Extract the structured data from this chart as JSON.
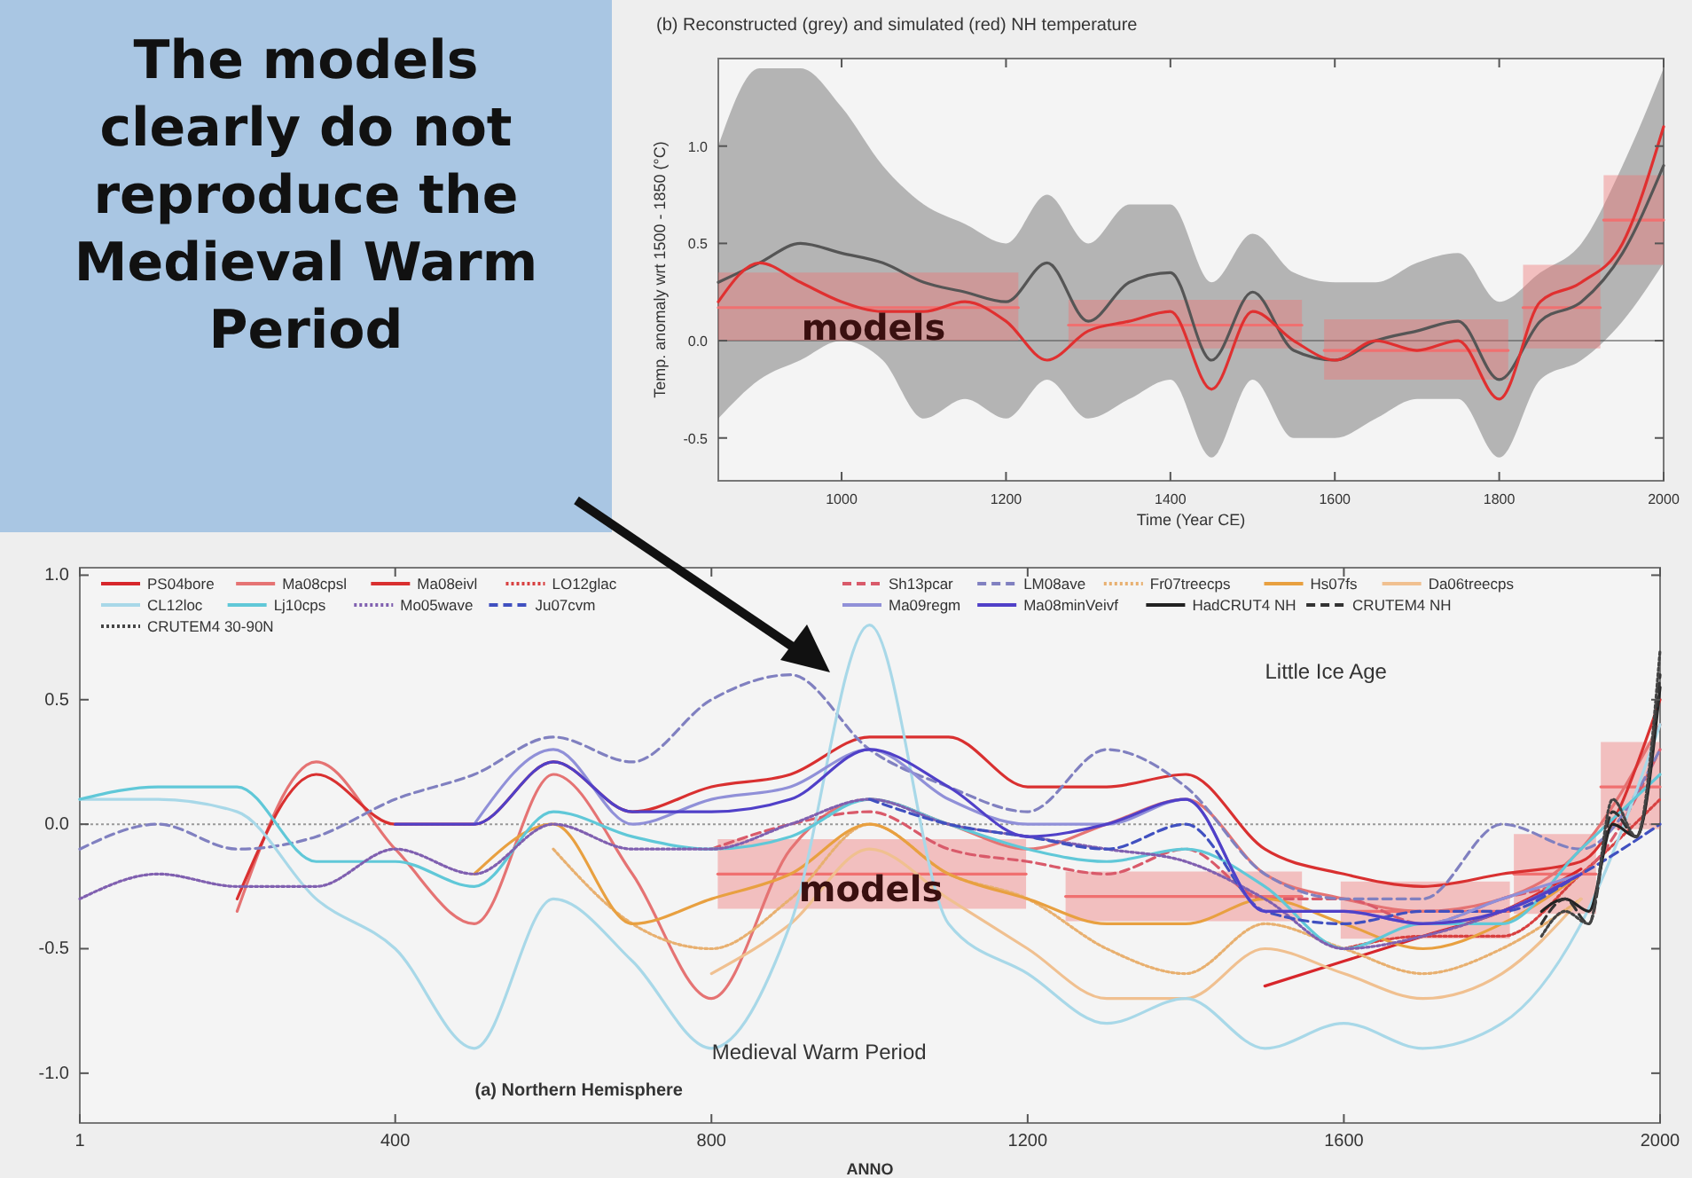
{
  "chart_data": [
    {
      "type": "other",
      "title": "The models clearly do not reproduce the Medieval Warm Period"
    },
    {
      "type": "line",
      "title": "(b) Reconstructed (grey) and simulated (red) NH temperature",
      "xlabel": "Time (Year CE)",
      "ylabel": "Temp. anomaly wrt 1500 - 1850 (°C)",
      "xlim": [
        850,
        2000
      ],
      "ylim": [
        -0.72,
        1.45
      ],
      "xticks": [
        1000,
        1200,
        1400,
        1600,
        1800,
        2000
      ],
      "yticks": [
        {
          "value": -0.5,
          "label": "-0.5"
        },
        {
          "value": 0,
          "label": "0.0"
        },
        {
          "value": 0.5,
          "label": "0.5"
        },
        {
          "value": 1,
          "label": "1.0"
        }
      ],
      "x": [
        850,
        900,
        950,
        1000,
        1050,
        1100,
        1150,
        1200,
        1250,
        1300,
        1350,
        1400,
        1450,
        1500,
        1550,
        1600,
        1650,
        1700,
        1750,
        1800,
        1850,
        1900,
        1950,
        2000
      ],
      "ref_lines": [
        {
          "axis": "y",
          "value": 0,
          "color": "#999999",
          "line_style": "solid"
        }
      ],
      "series": [
        {
          "color": "#555555",
          "values": [
            0.3,
            0.4,
            0.5,
            0.45,
            0.4,
            0.3,
            0.25,
            0.2,
            0.4,
            0.1,
            0.3,
            0.35,
            -0.1,
            0.25,
            -0.05,
            -0.1,
            0.0,
            0.05,
            0.1,
            -0.2,
            0.1,
            0.2,
            0.45,
            0.9
          ],
          "lower": [
            -0.4,
            -0.2,
            -0.1,
            0.0,
            -0.1,
            -0.4,
            -0.3,
            -0.4,
            -0.2,
            -0.4,
            -0.3,
            -0.2,
            -0.6,
            -0.2,
            -0.5,
            -0.5,
            -0.4,
            -0.3,
            -0.3,
            -0.6,
            -0.2,
            -0.1,
            0.1,
            0.4
          ],
          "upper": [
            1.0,
            1.4,
            1.4,
            1.2,
            0.9,
            0.7,
            0.6,
            0.5,
            0.75,
            0.5,
            0.7,
            0.7,
            0.3,
            0.55,
            0.35,
            0.3,
            0.3,
            0.4,
            0.45,
            0.2,
            0.35,
            0.5,
            0.9,
            1.4
          ]
        },
        {
          "color": "#e03030",
          "values": [
            0.2,
            0.4,
            0.3,
            0.2,
            0.15,
            0.15,
            0.2,
            0.1,
            -0.1,
            0.05,
            0.1,
            0.15,
            -0.25,
            0.15,
            0.0,
            -0.1,
            0.0,
            -0.05,
            0.0,
            -0.3,
            0.2,
            0.3,
            0.5,
            1.1
          ]
        },
        {
          "color": "#f07070",
          "x": [
            850,
            1215
          ],
          "values": [
            0.17,
            0.17
          ],
          "lower": [
            0,
            0
          ],
          "upper": [
            0.35,
            0.35
          ]
        },
        {
          "color": "#f07070",
          "x": [
            1276,
            1560
          ],
          "values": [
            0.08,
            0.08
          ],
          "lower": [
            -0.04,
            -0.04
          ],
          "upper": [
            0.21,
            0.21
          ]
        },
        {
          "color": "#f07070",
          "x": [
            1587,
            1811
          ],
          "values": [
            -0.05,
            -0.05
          ],
          "lower": [
            -0.2,
            -0.2
          ],
          "upper": [
            0.11,
            0.11
          ]
        },
        {
          "color": "#f07070",
          "x": [
            1829,
            1923
          ],
          "values": [
            0.17,
            0.17
          ],
          "lower": [
            -0.04,
            -0.04
          ],
          "upper": [
            0.39,
            0.39
          ]
        },
        {
          "color": "#f07070",
          "x": [
            1927,
            2000
          ],
          "values": [
            0.62,
            0.62
          ],
          "lower": [
            0.39,
            0.39
          ],
          "upper": [
            0.85,
            0.85
          ]
        }
      ],
      "annotations": [
        "models"
      ]
    },
    {
      "type": "line",
      "xlabel": "ANNO",
      "xlim": [
        1,
        2000
      ],
      "ylim": [
        -1.2,
        1.03
      ],
      "xticks": [
        1,
        400,
        800,
        1200,
        1600,
        2000
      ],
      "yticks": [
        {
          "value": -1,
          "label": "-1.0"
        },
        {
          "value": -0.5,
          "label": "-0.5"
        },
        {
          "value": 0,
          "label": "0.0"
        },
        {
          "value": 0.5,
          "label": "0.5"
        },
        {
          "value": 1,
          "label": "1.0"
        }
      ],
      "x": [
        1,
        100,
        200,
        300,
        400,
        500,
        600,
        700,
        800,
        900,
        1000,
        1100,
        1200,
        1300,
        1400,
        1500,
        1600,
        1700,
        1800,
        1900,
        2000
      ],
      "legend": "top",
      "ref_lines": [
        {
          "axis": "y",
          "value": 0,
          "color": "#999999",
          "line_style": "dotted"
        }
      ],
      "series": [
        {
          "name": "PS04bore",
          "color": "#d7262b",
          "x": [
            1500,
            1600,
            1700,
            1800,
            1900
          ],
          "values": [
            -0.65,
            -0.55,
            -0.45,
            -0.35,
            -0.18
          ]
        },
        {
          "name": "Ma08cpsl",
          "color": "#e57373",
          "values": [
            null,
            null,
            -0.35,
            0.25,
            -0.1,
            -0.4,
            0.2,
            -0.2,
            -0.7,
            -0.1,
            0.1,
            0.0,
            -0.1,
            0.0,
            0.1,
            -0.2,
            -0.3,
            -0.35,
            -0.3,
            -0.1,
            0.4
          ]
        },
        {
          "name": "Ma08eivl",
          "color": "#d93030",
          "values": [
            null,
            null,
            -0.3,
            0.2,
            0.0,
            0.0,
            0.25,
            0.05,
            0.15,
            0.2,
            0.35,
            0.35,
            0.15,
            0.15,
            0.2,
            -0.1,
            -0.2,
            -0.25,
            -0.2,
            -0.15,
            0.5
          ]
        },
        {
          "name": "LO12glac",
          "color": "#d84040",
          "line_style": "dotted",
          "x": [
            1600,
            1700,
            1800,
            1900,
            2000
          ],
          "values": [
            -0.5,
            -0.45,
            -0.45,
            -0.2,
            0.1
          ]
        },
        {
          "name": "Sh13pcar",
          "color": "#d95a6a",
          "line_style": "dashed",
          "values": [
            null,
            null,
            null,
            null,
            null,
            null,
            null,
            null,
            -0.1,
            0.0,
            0.05,
            -0.1,
            -0.15,
            -0.2,
            -0.1,
            -0.3,
            -0.3,
            -0.4,
            -0.3,
            -0.2,
            0.3
          ]
        },
        {
          "name": "LM08ave",
          "color": "#8080c0",
          "line_style": "dashed",
          "values": [
            -0.1,
            0.0,
            -0.1,
            -0.05,
            0.1,
            0.2,
            0.35,
            0.25,
            0.5,
            0.6,
            0.3,
            0.15,
            0.05,
            0.3,
            0.15,
            -0.2,
            -0.3,
            -0.3,
            0.0,
            -0.1,
            0.3
          ]
        },
        {
          "name": "Fr07treecps",
          "color": "#e8b070",
          "line_style": "dotted",
          "values": [
            null,
            null,
            null,
            null,
            null,
            null,
            -0.1,
            -0.4,
            -0.5,
            -0.3,
            0.0,
            -0.2,
            -0.3,
            -0.5,
            -0.6,
            -0.4,
            -0.5,
            -0.6,
            -0.5,
            -0.3,
            null
          ]
        },
        {
          "name": "Hs07fs",
          "color": "#e8a040",
          "values": [
            null,
            null,
            null,
            null,
            null,
            -0.2,
            0.0,
            -0.4,
            -0.3,
            -0.2,
            0.0,
            -0.2,
            -0.3,
            -0.4,
            -0.4,
            -0.3,
            -0.4,
            -0.5,
            -0.4,
            -0.2,
            null
          ]
        },
        {
          "name": "Da06treecps",
          "color": "#f0c090",
          "values": [
            null,
            null,
            null,
            null,
            null,
            null,
            null,
            null,
            -0.6,
            -0.4,
            -0.1,
            -0.3,
            -0.5,
            -0.7,
            -0.7,
            -0.5,
            -0.6,
            -0.7,
            -0.6,
            -0.3,
            null
          ]
        },
        {
          "name": "CL12loc",
          "color": "#a8d8e8",
          "values": [
            0.1,
            0.1,
            0.05,
            -0.3,
            -0.5,
            -0.9,
            -0.3,
            -0.55,
            -0.9,
            -0.4,
            0.8,
            -0.4,
            -0.6,
            -0.8,
            -0.7,
            -0.9,
            -0.8,
            -0.9,
            -0.8,
            -0.4,
            0.4
          ]
        },
        {
          "name": "Lj10cps",
          "color": "#60c8d8",
          "values": [
            0.1,
            0.15,
            0.15,
            -0.15,
            -0.15,
            -0.25,
            0.05,
            -0.05,
            -0.1,
            -0.05,
            0.1,
            0.0,
            -0.1,
            -0.15,
            -0.1,
            -0.25,
            -0.5,
            -0.4,
            -0.4,
            -0.1,
            0.2
          ]
        },
        {
          "name": "Mo05wave",
          "color": "#8060b0",
          "line_style": "dotted",
          "values": [
            -0.3,
            -0.2,
            -0.25,
            -0.25,
            -0.1,
            -0.2,
            0.0,
            -0.1,
            -0.1,
            0.0,
            0.1,
            0.0,
            -0.05,
            -0.1,
            -0.15,
            -0.3,
            -0.5,
            -0.45,
            -0.35,
            -0.2,
            null
          ]
        },
        {
          "name": "Ju07cvm",
          "color": "#4050c0",
          "line_style": "dashed",
          "values": [
            null,
            null,
            null,
            null,
            null,
            null,
            null,
            null,
            null,
            null,
            0.1,
            0.0,
            -0.05,
            -0.1,
            0.0,
            -0.35,
            -0.4,
            -0.35,
            -0.35,
            -0.2,
            0.0
          ]
        },
        {
          "name": "Ma09regm",
          "color": "#9090d8",
          "values": [
            null,
            null,
            null,
            null,
            null,
            0.0,
            0.3,
            0.0,
            0.1,
            0.15,
            0.3,
            0.1,
            0.0,
            0.0,
            0.1,
            -0.35,
            -0.35,
            -0.4,
            -0.3,
            -0.2,
            null
          ]
        },
        {
          "name": "Ma08minVeivf",
          "color": "#5040c8",
          "values": [
            null,
            null,
            null,
            null,
            0.0,
            0.0,
            0.25,
            0.05,
            0.05,
            0.1,
            0.3,
            0.15,
            -0.05,
            0.0,
            0.1,
            -0.35,
            -0.35,
            -0.4,
            -0.35,
            -0.2,
            null
          ]
        },
        {
          "name": "HadCRUT4 NH",
          "color": "#222222",
          "x": [
            1850,
            1880,
            1910,
            1940,
            1970,
            2000
          ],
          "values": [
            -0.35,
            -0.3,
            -0.35,
            0.0,
            -0.05,
            0.55
          ]
        },
        {
          "name": "CRUTEM4 NH",
          "color": "#333333",
          "line_style": "dashed",
          "x": [
            1850,
            1880,
            1910,
            1940,
            1970,
            2000
          ],
          "values": [
            -0.4,
            -0.3,
            -0.4,
            0.05,
            -0.05,
            0.6
          ]
        },
        {
          "name": "CRUTEM4 30-90N",
          "color": "#444444",
          "line_style": "dotted",
          "x": [
            1850,
            1880,
            1910,
            1940,
            1970,
            2000
          ],
          "values": [
            -0.45,
            -0.35,
            -0.4,
            0.1,
            -0.05,
            0.7
          ]
        },
        {
          "color": "#f07070",
          "x": [
            808,
            1198
          ],
          "values": [
            -0.2,
            -0.2
          ],
          "lower": [
            -0.34,
            -0.34
          ],
          "upper": [
            -0.06,
            -0.06
          ]
        },
        {
          "color": "#f07070",
          "x": [
            1248,
            1547
          ],
          "values": [
            -0.29,
            -0.29
          ],
          "lower": [
            -0.39,
            -0.39
          ],
          "upper": [
            -0.19,
            -0.19
          ]
        },
        {
          "color": "#f07070",
          "x": [
            1596,
            1810
          ],
          "values": [
            -0.35,
            -0.35
          ],
          "lower": [
            -0.46,
            -0.46
          ],
          "upper": [
            -0.23,
            -0.23
          ]
        },
        {
          "color": "#f07070",
          "x": [
            1815,
            1919
          ],
          "values": [
            -0.2,
            -0.2
          ],
          "lower": [
            -0.36,
            -0.36
          ],
          "upper": [
            -0.04,
            -0.04
          ]
        },
        {
          "color": "#f07070",
          "x": [
            1925,
            2000
          ],
          "values": [
            0.15,
            0.15
          ],
          "lower": [
            -0.02,
            -0.02
          ],
          "upper": [
            0.33,
            0.33
          ]
        }
      ],
      "annotations": [
        "models",
        "Little Ice Age",
        "Medieval Warm Period",
        "(a) Northern Hemisphere"
      ]
    }
  ]
}
